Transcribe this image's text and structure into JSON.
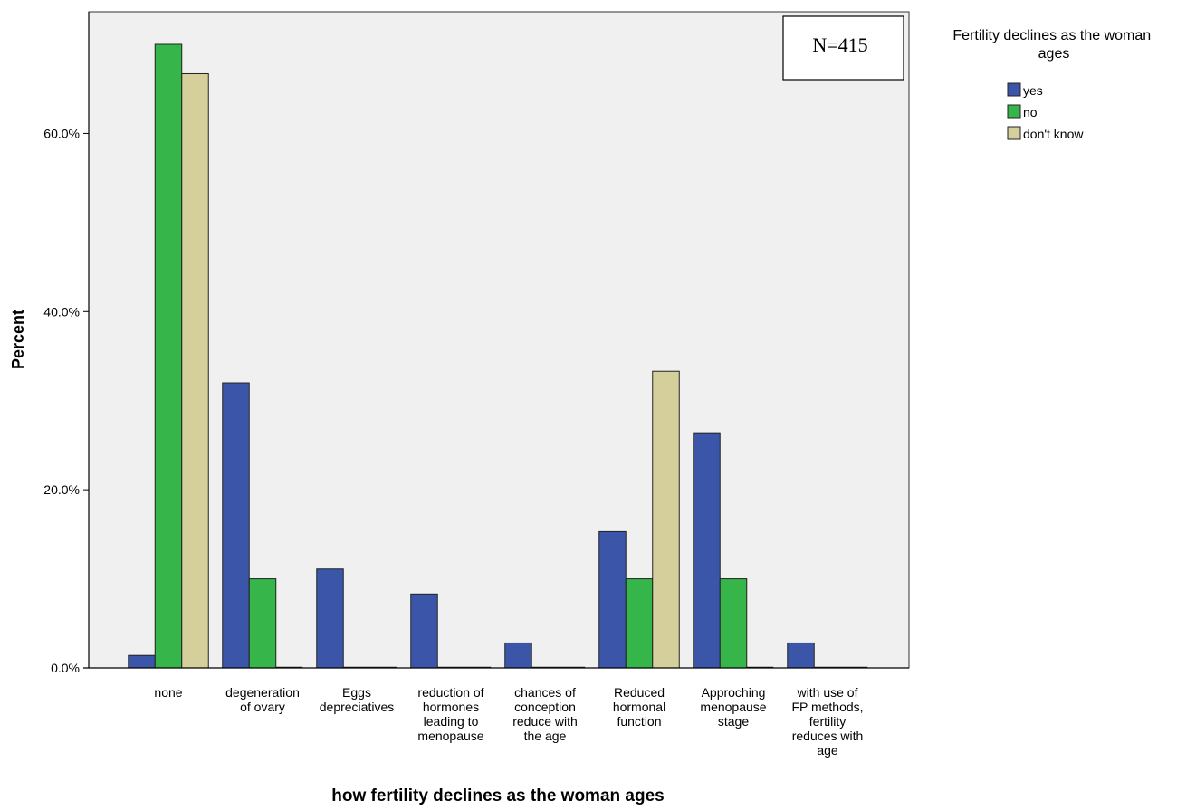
{
  "chart_data": {
    "type": "bar",
    "xlabel": "how fertility declines as the woman ages",
    "ylabel": "Percent",
    "ylim": [
      0,
      70
    ],
    "yticks": [
      0,
      20,
      40,
      60
    ],
    "ytick_labels": [
      "0.0%",
      "20.0%",
      "40.0%",
      "60.0%"
    ],
    "annotation": "N=415",
    "legend_title": "Fertility declines as the woman ages",
    "legend_position": "right",
    "grid": false,
    "categories": [
      [
        "none"
      ],
      [
        "degeneration",
        "of ovary"
      ],
      [
        "Eggs",
        "depreciatives"
      ],
      [
        "reduction of",
        "hormones",
        "leading to",
        "menopause"
      ],
      [
        "chances of",
        "conception",
        "reduce with",
        "the age"
      ],
      [
        "Reduced",
        "hormonal",
        "function"
      ],
      [
        "Approching",
        "menopause",
        "stage"
      ],
      [
        "with use of",
        "FP methods,",
        "fertility",
        "reduces with",
        "age"
      ]
    ],
    "series": [
      {
        "name": "yes",
        "color": "#3b56a9",
        "values": [
          1.4,
          32.0,
          11.1,
          8.3,
          2.8,
          15.3,
          26.4,
          2.8
        ]
      },
      {
        "name": "no",
        "color": "#36b54a",
        "values": [
          70.0,
          10.0,
          0,
          0,
          0,
          10.0,
          10.0,
          0
        ]
      },
      {
        "name": "don't know",
        "color": "#d5cf9b",
        "values": [
          66.7,
          0,
          0,
          0,
          0,
          33.3,
          0,
          0
        ]
      }
    ]
  }
}
